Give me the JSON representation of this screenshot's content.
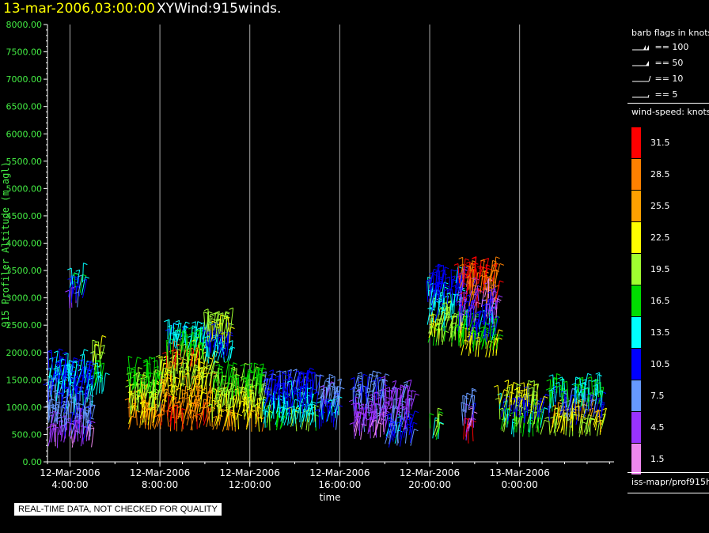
{
  "header": {
    "date": "13-mar-2006,03:00:00",
    "name": "XYWind:915winds."
  },
  "notice": "REAL-TIME DATA, NOT CHECKED FOR QUALITY",
  "legend": {
    "flags_title": "barb flags in knots",
    "flags": [
      "== 100",
      "== 50",
      "== 10",
      "== 5"
    ],
    "speed_title": "wind-speed: knots",
    "speed_labels": [
      "31.5",
      "28.5",
      "25.5",
      "22.5",
      "19.5",
      "16.5",
      "13.5",
      "10.5",
      "7.5",
      "4.5",
      "1.5"
    ],
    "speed_colors": [
      "#ff0000",
      "#ff8000",
      "#ffa000",
      "#ffff00",
      "#a0ff30",
      "#00dd00",
      "#00ffff",
      "#0000ff",
      "#6699ff",
      "#9933ff",
      "#ee88ee"
    ],
    "source": "iss-mapr/prof915h"
  },
  "chart_data": {
    "type": "scatter",
    "title": "XYWind:915winds.",
    "ylabel": "915 Profiler Altitude (m agl)",
    "xlabel": "time",
    "ylim": [
      0,
      8000
    ],
    "yticks": [
      "0.00",
      "500.00",
      "1000.00",
      "1500.00",
      "2000.00",
      "2500.00",
      "3000.00",
      "3500.00",
      "4000.00",
      "4500.00",
      "5000.00",
      "5500.00",
      "6000.00",
      "6500.00",
      "7000.00",
      "7500.00",
      "8000.00"
    ],
    "xticks": [
      {
        "date": "12-Mar-2006",
        "time": "4:00:00",
        "hours": 4
      },
      {
        "date": "12-Mar-2006",
        "time": "8:00:00",
        "hours": 8
      },
      {
        "date": "12-Mar-2006",
        "time": "12:00:00",
        "hours": 12
      },
      {
        "date": "12-Mar-2006",
        "time": "16:00:00",
        "hours": 16
      },
      {
        "date": "12-Mar-2006",
        "time": "20:00:00",
        "hours": 20
      },
      {
        "date": "13-Mar-2006",
        "time": "0:00:00",
        "hours": 24
      }
    ],
    "xlim_hours": [
      3,
      28.2
    ],
    "grid": "vertical at x ticks",
    "barb_clusters": [
      {
        "t0": 3.0,
        "t1": 5.0,
        "z0": 250,
        "z1": 1700,
        "speeds": [
          4,
          8,
          12
        ]
      },
      {
        "t0": 3.9,
        "t1": 4.6,
        "z0": 2800,
        "z1": 3300,
        "speeds": [
          6,
          10,
          14
        ]
      },
      {
        "t0": 5.0,
        "t1": 5.5,
        "z0": 1200,
        "z1": 2000,
        "speeds": [
          12,
          16,
          20
        ]
      },
      {
        "t0": 6.6,
        "t1": 8.0,
        "z0": 550,
        "z1": 1600,
        "speeds": [
          28,
          24,
          20,
          17
        ]
      },
      {
        "t0": 8.0,
        "t1": 10.3,
        "z0": 550,
        "z1": 1700,
        "speeds": [
          30,
          27,
          24,
          21
        ]
      },
      {
        "t0": 8.3,
        "t1": 10.0,
        "z0": 1700,
        "z1": 2300,
        "speeds": [
          30,
          20,
          17,
          13
        ]
      },
      {
        "t0": 10.0,
        "t1": 11.2,
        "z0": 1800,
        "z1": 2500,
        "speeds": [
          14,
          11,
          20
        ]
      },
      {
        "t0": 10.3,
        "t1": 12.6,
        "z0": 550,
        "z1": 1500,
        "speeds": [
          26,
          23,
          20,
          17
        ]
      },
      {
        "t0": 12.6,
        "t1": 15.0,
        "z0": 550,
        "z1": 1400,
        "speeds": [
          18,
          14,
          12,
          10
        ]
      },
      {
        "t0": 15.0,
        "t1": 16.0,
        "z0": 550,
        "z1": 1250,
        "speeds": [
          10,
          12,
          7
        ]
      },
      {
        "t0": 16.6,
        "t1": 18.0,
        "z0": 400,
        "z1": 1300,
        "speeds": [
          3,
          5,
          8
        ]
      },
      {
        "t0": 18.0,
        "t1": 19.2,
        "z0": 250,
        "z1": 1200,
        "speeds": [
          8,
          11,
          6,
          5
        ]
      },
      {
        "t0": 20.0,
        "t1": 20.5,
        "z0": 400,
        "z1": 650,
        "speeds": [
          15,
          18
        ]
      },
      {
        "t0": 19.9,
        "t1": 21.5,
        "z0": 2100,
        "z1": 3300,
        "speeds": [
          17,
          20,
          13,
          11
        ]
      },
      {
        "t0": 21.3,
        "t1": 23.0,
        "z0": 1900,
        "z1": 3450,
        "speeds": [
          22,
          16,
          11,
          4,
          30
        ]
      },
      {
        "t0": 21.4,
        "t1": 22.0,
        "z0": 300,
        "z1": 1000,
        "speeds": [
          31,
          4,
          8
        ]
      },
      {
        "t0": 23.1,
        "t1": 25.0,
        "z0": 450,
        "z1": 1150,
        "speeds": [
          15,
          19,
          11,
          21
        ]
      },
      {
        "t0": 25.3,
        "t1": 27.7,
        "z0": 450,
        "z1": 1300,
        "speeds": [
          20,
          24,
          9,
          15
        ]
      }
    ]
  }
}
